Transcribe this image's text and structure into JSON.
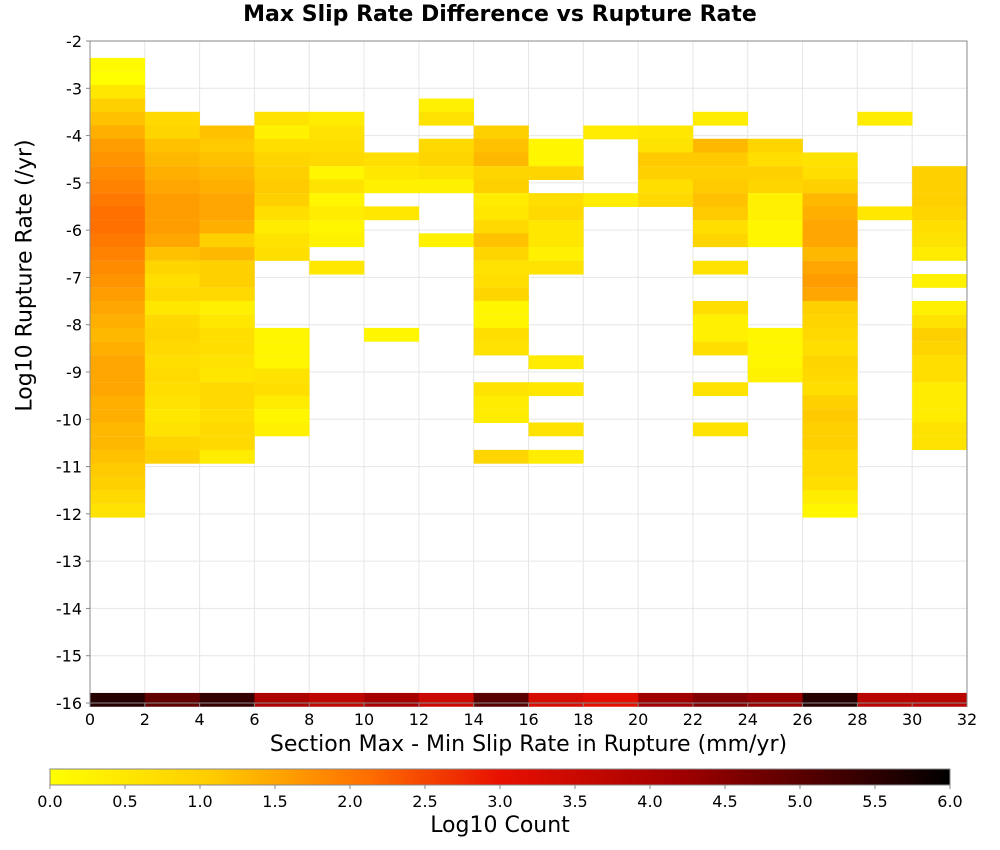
{
  "chart_data": {
    "type": "heatmap",
    "title": "Max Slip Rate Difference vs Rupture Rate",
    "xlabel": "Section Max - Min Slip Rate in Rupture (mm/yr)",
    "ylabel": "Log10 Rupture Rate (/yr)",
    "colorbar_label": "Log10 Count",
    "xlim": [
      0,
      32
    ],
    "ylim": [
      -16,
      -2
    ],
    "x_ticks": [
      "0",
      "2",
      "4",
      "6",
      "8",
      "10",
      "12",
      "14",
      "16",
      "18",
      "20",
      "22",
      "24",
      "26",
      "28",
      "30",
      "32"
    ],
    "y_ticks": [
      "-2",
      "-3",
      "-4",
      "-5",
      "-6",
      "-7",
      "-8",
      "-9",
      "-10",
      "-11",
      "-12",
      "-13",
      "-14",
      "-15",
      "-16"
    ],
    "colorbar_ticks": [
      "0.0",
      "0.5",
      "1.0",
      "1.5",
      "2.0",
      "2.5",
      "3.0",
      "3.5",
      "4.0",
      "4.5",
      "5.0",
      "5.5",
      "6.0"
    ],
    "colorbar_range": [
      0,
      6
    ],
    "grid": true,
    "bin_width_x": 2,
    "bin_height_y": 0.2857,
    "cells": [
      [
        1,
        -2.5,
        0.1
      ],
      [
        1,
        -2.79,
        0
      ],
      [
        1,
        -3.07,
        0.5
      ],
      [
        1,
        -3.36,
        1.0
      ],
      [
        1,
        -3.64,
        1.2
      ],
      [
        1,
        -3.93,
        1.4
      ],
      [
        1,
        -4.21,
        1.6
      ],
      [
        1,
        -4.5,
        1.7
      ],
      [
        1,
        -4.79,
        1.8
      ],
      [
        1,
        -5.07,
        1.9
      ],
      [
        1,
        -5.36,
        2.0
      ],
      [
        1,
        -5.64,
        2.1
      ],
      [
        1,
        -5.93,
        2.1
      ],
      [
        1,
        -6.21,
        2.0
      ],
      [
        1,
        -6.5,
        1.9
      ],
      [
        1,
        -6.79,
        1.8
      ],
      [
        1,
        -7.07,
        1.7
      ],
      [
        1,
        -7.36,
        1.6
      ],
      [
        1,
        -7.64,
        1.5
      ],
      [
        1,
        -7.93,
        1.4
      ],
      [
        1,
        -8.21,
        1.3
      ],
      [
        1,
        -8.5,
        1.4
      ],
      [
        1,
        -8.79,
        1.5
      ],
      [
        1,
        -9.07,
        1.5
      ],
      [
        1,
        -9.36,
        1.5
      ],
      [
        1,
        -9.64,
        1.4
      ],
      [
        1,
        -9.93,
        1.4
      ],
      [
        1,
        -10.21,
        1.3
      ],
      [
        1,
        -10.5,
        1.3
      ],
      [
        1,
        -10.79,
        1.2
      ],
      [
        1,
        -11.07,
        1.1
      ],
      [
        1,
        -11.36,
        1.0
      ],
      [
        1,
        -11.64,
        0.8
      ],
      [
        1,
        -11.93,
        0.6
      ],
      [
        3,
        -3.64,
        0.8
      ],
      [
        3,
        -3.93,
        0.9
      ],
      [
        3,
        -4.21,
        1.2
      ],
      [
        3,
        -4.5,
        1.3
      ],
      [
        3,
        -4.79,
        1.4
      ],
      [
        3,
        -5.07,
        1.5
      ],
      [
        3,
        -5.36,
        1.6
      ],
      [
        3,
        -5.64,
        1.6
      ],
      [
        3,
        -5.93,
        1.6
      ],
      [
        3,
        -6.21,
        1.5
      ],
      [
        3,
        -6.5,
        1.2
      ],
      [
        3,
        -6.79,
        0.9
      ],
      [
        3,
        -7.07,
        0.7
      ],
      [
        3,
        -7.36,
        0.8
      ],
      [
        3,
        -7.64,
        0.5
      ],
      [
        3,
        -7.93,
        0.8
      ],
      [
        3,
        -8.21,
        0.9
      ],
      [
        3,
        -8.5,
        0.8
      ],
      [
        3,
        -8.79,
        0.7
      ],
      [
        3,
        -9.07,
        0.8
      ],
      [
        3,
        -9.36,
        0.7
      ],
      [
        3,
        -9.64,
        0.6
      ],
      [
        3,
        -9.93,
        0.5
      ],
      [
        3,
        -10.21,
        0.6
      ],
      [
        3,
        -10.5,
        0.9
      ],
      [
        3,
        -10.79,
        1.0
      ],
      [
        5,
        -3.93,
        1.2
      ],
      [
        5,
        -4.21,
        1.1
      ],
      [
        5,
        -4.5,
        1.2
      ],
      [
        5,
        -4.79,
        1.3
      ],
      [
        5,
        -5.07,
        1.4
      ],
      [
        5,
        -5.36,
        1.5
      ],
      [
        5,
        -5.64,
        1.5
      ],
      [
        5,
        -5.93,
        1.4
      ],
      [
        5,
        -6.21,
        1.0
      ],
      [
        5,
        -6.5,
        1.3
      ],
      [
        5,
        -6.79,
        1.0
      ],
      [
        5,
        -7.07,
        1.0
      ],
      [
        5,
        -7.36,
        0.8
      ],
      [
        5,
        -7.64,
        0.3
      ],
      [
        5,
        -7.93,
        0.5
      ],
      [
        5,
        -8.21,
        0.7
      ],
      [
        5,
        -8.5,
        0.7
      ],
      [
        5,
        -8.79,
        0.6
      ],
      [
        5,
        -9.07,
        0.5
      ],
      [
        5,
        -9.36,
        0.8
      ],
      [
        5,
        -9.64,
        0.8
      ],
      [
        5,
        -9.93,
        0.7
      ],
      [
        5,
        -10.21,
        0.8
      ],
      [
        5,
        -10.5,
        0.8
      ],
      [
        5,
        -10.79,
        0.4
      ],
      [
        7,
        -3.64,
        0.6
      ],
      [
        7,
        -3.93,
        0.3
      ],
      [
        7,
        -4.21,
        0.7
      ],
      [
        7,
        -4.5,
        0.9
      ],
      [
        7,
        -4.79,
        1.0
      ],
      [
        7,
        -5.07,
        1.1
      ],
      [
        7,
        -5.36,
        1.0
      ],
      [
        7,
        -5.64,
        0.7
      ],
      [
        7,
        -5.93,
        0.4
      ],
      [
        7,
        -6.21,
        0.6
      ],
      [
        7,
        -6.5,
        0.7
      ],
      [
        7,
        -8.21,
        0.2
      ],
      [
        7,
        -8.5,
        0.2
      ],
      [
        7,
        -8.79,
        0.2
      ],
      [
        7,
        -9.07,
        0.6
      ],
      [
        7,
        -9.36,
        0.7
      ],
      [
        7,
        -9.64,
        0.4
      ],
      [
        7,
        -9.93,
        0.2
      ],
      [
        7,
        -10.21,
        0.3
      ],
      [
        9,
        -3.64,
        0.4
      ],
      [
        9,
        -3.93,
        0.6
      ],
      [
        9,
        -4.21,
        0.7
      ],
      [
        9,
        -4.5,
        0.8
      ],
      [
        9,
        -4.79,
        0.2
      ],
      [
        9,
        -5.07,
        0.6
      ],
      [
        9,
        -5.36,
        0.2
      ],
      [
        9,
        -5.64,
        0.4
      ],
      [
        9,
        -5.93,
        0.2
      ],
      [
        9,
        -6.21,
        0.3
      ],
      [
        9,
        -6.79,
        0.5
      ],
      [
        11,
        -4.5,
        0.7
      ],
      [
        11,
        -4.79,
        0.5
      ],
      [
        11,
        -5.07,
        0.3
      ],
      [
        11,
        -5.64,
        0.5
      ],
      [
        11,
        -8.21,
        0.2
      ],
      [
        13,
        -3.36,
        0.3
      ],
      [
        13,
        -3.64,
        0.6
      ],
      [
        13,
        -4.21,
        0.8
      ],
      [
        13,
        -4.5,
        0.9
      ],
      [
        13,
        -4.79,
        0.6
      ],
      [
        13,
        -5.07,
        0.3
      ],
      [
        13,
        -6.21,
        0.3
      ],
      [
        15,
        -3.93,
        1.0
      ],
      [
        15,
        -4.21,
        1.2
      ],
      [
        15,
        -4.5,
        1.3
      ],
      [
        15,
        -4.79,
        0.9
      ],
      [
        15,
        -5.07,
        1.0
      ],
      [
        15,
        -5.36,
        0.4
      ],
      [
        15,
        -5.64,
        0.5
      ],
      [
        15,
        -5.93,
        0.8
      ],
      [
        15,
        -6.21,
        1.2
      ],
      [
        15,
        -6.5,
        0.9
      ],
      [
        15,
        -6.79,
        0.6
      ],
      [
        15,
        -7.07,
        0.7
      ],
      [
        15,
        -7.36,
        0.9
      ],
      [
        15,
        -7.64,
        0.2
      ],
      [
        15,
        -7.93,
        0.2
      ],
      [
        15,
        -8.21,
        0.7
      ],
      [
        15,
        -8.5,
        0.6
      ],
      [
        15,
        -9.36,
        0.6
      ],
      [
        15,
        -9.64,
        0.4
      ],
      [
        15,
        -9.93,
        0.4
      ],
      [
        15,
        -10.79,
        0.9
      ],
      [
        17,
        -4.21,
        0.2
      ],
      [
        17,
        -4.5,
        0.2
      ],
      [
        17,
        -4.79,
        0.9
      ],
      [
        17,
        -5.36,
        0.7
      ],
      [
        17,
        -5.64,
        0.8
      ],
      [
        17,
        -5.93,
        0.5
      ],
      [
        17,
        -6.21,
        0.5
      ],
      [
        17,
        -6.5,
        0.3
      ],
      [
        17,
        -6.79,
        0.6
      ],
      [
        17,
        -8.79,
        0.4
      ],
      [
        17,
        -9.36,
        0.5
      ],
      [
        17,
        -10.21,
        0.6
      ],
      [
        17,
        -10.79,
        0.4
      ],
      [
        19,
        -3.93,
        0.4
      ],
      [
        19,
        -5.36,
        0.4
      ],
      [
        21,
        -3.93,
        0.5
      ],
      [
        21,
        -4.21,
        0.6
      ],
      [
        21,
        -4.5,
        1.1
      ],
      [
        21,
        -4.79,
        1.0
      ],
      [
        21,
        -5.07,
        0.7
      ],
      [
        21,
        -5.36,
        0.8
      ],
      [
        23,
        -3.64,
        0.4
      ],
      [
        23,
        -4.21,
        1.3
      ],
      [
        23,
        -4.5,
        1.1
      ],
      [
        23,
        -4.79,
        1.0
      ],
      [
        23,
        -5.07,
        1.1
      ],
      [
        23,
        -5.36,
        1.2
      ],
      [
        23,
        -5.64,
        1.1
      ],
      [
        23,
        -5.93,
        0.7
      ],
      [
        23,
        -6.21,
        0.9
      ],
      [
        23,
        -6.79,
        0.6
      ],
      [
        23,
        -7.64,
        0.7
      ],
      [
        23,
        -7.93,
        0.3
      ],
      [
        23,
        -8.21,
        0.3
      ],
      [
        23,
        -8.5,
        0.7
      ],
      [
        23,
        -9.36,
        0.6
      ],
      [
        23,
        -10.21,
        0.6
      ],
      [
        25,
        -4.21,
        0.9
      ],
      [
        25,
        -4.5,
        0.7
      ],
      [
        25,
        -4.79,
        1.0
      ],
      [
        25,
        -5.07,
        0.9
      ],
      [
        25,
        -5.36,
        0.3
      ],
      [
        25,
        -5.64,
        0.3
      ],
      [
        25,
        -5.93,
        0.2
      ],
      [
        25,
        -6.21,
        0.2
      ],
      [
        25,
        -8.21,
        0.2
      ],
      [
        25,
        -8.5,
        0.2
      ],
      [
        25,
        -8.79,
        0.2
      ],
      [
        25,
        -9.07,
        0.3
      ],
      [
        27,
        -4.5,
        0.6
      ],
      [
        27,
        -4.79,
        0.7
      ],
      [
        27,
        -5.07,
        1.0
      ],
      [
        27,
        -5.36,
        1.3
      ],
      [
        27,
        -5.64,
        1.4
      ],
      [
        27,
        -5.93,
        1.5
      ],
      [
        27,
        -6.21,
        1.5
      ],
      [
        27,
        -6.5,
        1.3
      ],
      [
        27,
        -6.79,
        1.5
      ],
      [
        27,
        -7.07,
        1.6
      ],
      [
        27,
        -7.36,
        1.5
      ],
      [
        27,
        -7.64,
        1.0
      ],
      [
        27,
        -7.93,
        0.9
      ],
      [
        27,
        -8.21,
        0.8
      ],
      [
        27,
        -8.5,
        0.7
      ],
      [
        27,
        -8.79,
        0.9
      ],
      [
        27,
        -9.07,
        0.8
      ],
      [
        27,
        -9.36,
        0.7
      ],
      [
        27,
        -9.64,
        1.0
      ],
      [
        27,
        -9.93,
        1.1
      ],
      [
        27,
        -10.21,
        1.0
      ],
      [
        27,
        -10.5,
        1.0
      ],
      [
        27,
        -10.79,
        0.8
      ],
      [
        27,
        -11.07,
        0.8
      ],
      [
        27,
        -11.36,
        0.7
      ],
      [
        27,
        -11.64,
        0.4
      ],
      [
        27,
        -11.93,
        0.2
      ],
      [
        29,
        -3.64,
        0.4
      ],
      [
        29,
        -5.64,
        0.5
      ],
      [
        31,
        -4.79,
        1.0
      ],
      [
        31,
        -5.07,
        1.0
      ],
      [
        31,
        -5.36,
        1.0
      ],
      [
        31,
        -5.64,
        0.9
      ],
      [
        31,
        -5.93,
        0.7
      ],
      [
        31,
        -6.21,
        0.6
      ],
      [
        31,
        -6.5,
        0.4
      ],
      [
        31,
        -7.07,
        0.3
      ],
      [
        31,
        -7.64,
        0.3
      ],
      [
        31,
        -7.93,
        0.6
      ],
      [
        31,
        -8.21,
        1.0
      ],
      [
        31,
        -8.5,
        0.9
      ],
      [
        31,
        -8.79,
        0.7
      ],
      [
        31,
        -9.07,
        0.7
      ],
      [
        31,
        -9.36,
        0.4
      ],
      [
        31,
        -9.64,
        0.4
      ],
      [
        31,
        -9.93,
        0.4
      ],
      [
        31,
        -10.21,
        0.6
      ],
      [
        31,
        -10.5,
        0.6
      ]
    ],
    "bottom_row": [
      [
        1,
        -15.93,
        5.6
      ],
      [
        3,
        -15.93,
        4.9
      ],
      [
        5,
        -15.93,
        5.4
      ],
      [
        7,
        -15.93,
        4.0
      ],
      [
        9,
        -15.93,
        3.7
      ],
      [
        11,
        -15.93,
        4.1
      ],
      [
        13,
        -15.93,
        3.5
      ],
      [
        15,
        -15.93,
        5.0
      ],
      [
        17,
        -15.93,
        3.3
      ],
      [
        19,
        -15.93,
        3.1
      ],
      [
        21,
        -15.93,
        4.2
      ],
      [
        23,
        -15.93,
        4.5
      ],
      [
        25,
        -15.93,
        4.3
      ],
      [
        27,
        -15.93,
        5.6
      ],
      [
        29,
        -15.93,
        3.8
      ],
      [
        31,
        -15.93,
        3.8
      ]
    ]
  }
}
